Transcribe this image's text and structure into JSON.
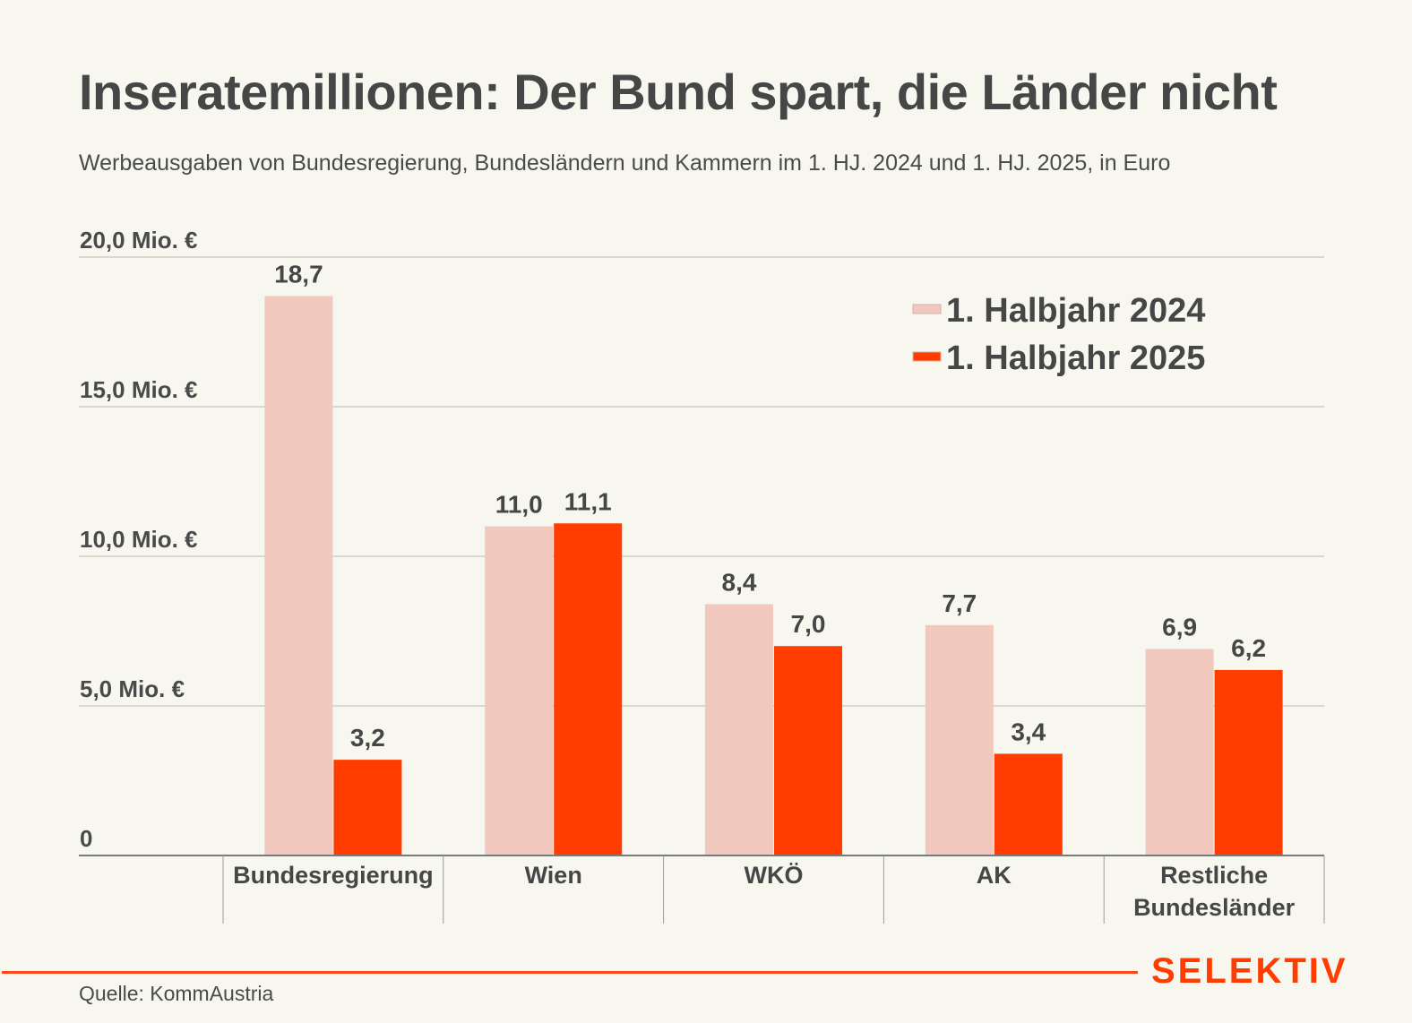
{
  "header": {
    "title": "Inseratemillionen: Der Bund spart, die Länder nicht",
    "subtitle": "Werbeausgaben von Bundesregierung, Bundesländern und Kammern im 1. HJ. 2024 und 1. HJ. 2025, in Euro"
  },
  "footer": {
    "source": "Quelle: KommAustria",
    "brand": "SELEKTIV",
    "brand_color": "#ff3d00"
  },
  "chart_data": {
    "type": "bar",
    "title": "Inseratemillionen: Der Bund spart, die Länder nicht",
    "subtitle": "Werbeausgaben von Bundesregierung, Bundesländern und Kammern im 1. HJ. 2024 und 1. HJ. 2025, in Euro",
    "xlabel": "",
    "ylabel": "",
    "unit": "Mio. €",
    "ylim": [
      0,
      20
    ],
    "grid": true,
    "legend_position": "top-right",
    "yticks": [
      {
        "value": 0,
        "label": "0"
      },
      {
        "value": 5,
        "label": "5,0 Mio. €"
      },
      {
        "value": 10,
        "label": "10,0 Mio. €"
      },
      {
        "value": 15,
        "label": "15,0 Mio. €"
      },
      {
        "value": 20,
        "label": "20,0 Mio. €"
      }
    ],
    "categories": [
      [
        "Bundesregierung"
      ],
      [
        "Wien"
      ],
      [
        "WKÖ"
      ],
      [
        "AK"
      ],
      [
        "Restliche",
        "Bundesländer"
      ]
    ],
    "series": [
      {
        "name": "1. Halbjahr 2024",
        "color": "#f0c8bd",
        "values": [
          18.7,
          11.0,
          8.4,
          7.7,
          6.9
        ],
        "labels": [
          "18,7",
          "11,0",
          "8,4",
          "7,7",
          "6,9"
        ]
      },
      {
        "name": "1. Halbjahr 2025",
        "color": "#ff3d00",
        "values": [
          3.2,
          11.1,
          7.0,
          3.4,
          6.2
        ],
        "labels": [
          "3,2",
          "11,1",
          "7,0",
          "3,4",
          "6,2"
        ]
      }
    ]
  }
}
